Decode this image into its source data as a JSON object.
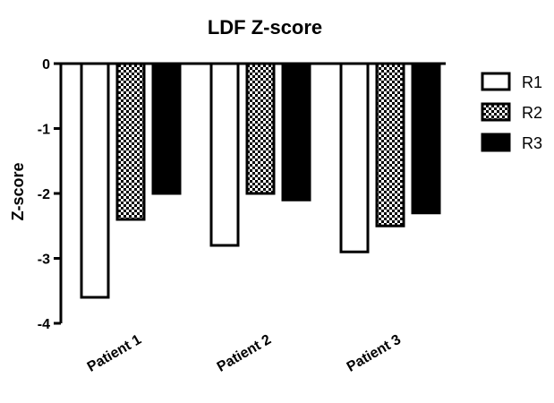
{
  "chart_data": {
    "type": "bar",
    "title": "LDF Z-score",
    "xlabel": "",
    "ylabel": "Z-score",
    "ylim": [
      -4,
      0
    ],
    "yticks": [
      "0",
      "-1",
      "-2",
      "-3",
      "-4"
    ],
    "categories": [
      "Patient 1",
      "Patient 2",
      "Patient 3"
    ],
    "series": [
      {
        "name": "R1",
        "values": [
          -3.6,
          -2.8,
          -2.9
        ],
        "fill": "white"
      },
      {
        "name": "R2",
        "values": [
          -2.4,
          -2.0,
          -2.5
        ],
        "fill": "checker"
      },
      {
        "name": "R3",
        "values": [
          -2.0,
          -2.1,
          -2.3
        ],
        "fill": "black"
      }
    ],
    "legend_position": "right",
    "grid": false
  }
}
